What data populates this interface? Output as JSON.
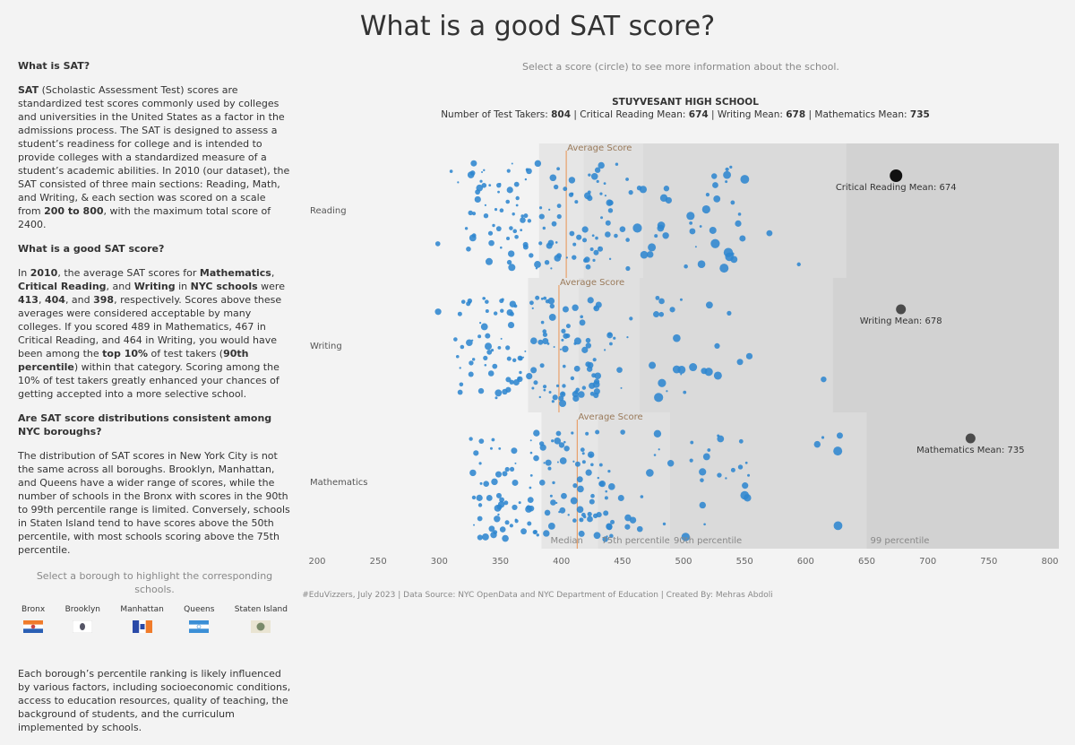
{
  "title": "What is a good SAT score?",
  "sidebar": {
    "h1": "What is SAT?",
    "p1_bold": "SAT",
    "p1_a": " (Scholastic Assessment Test) scores are standardized test scores commonly used by colleges and universities in the United States as a factor in the admissions process. The SAT is designed to assess a student’s readiness for college and is intended to provide colleges with a standardized measure of a student’s academic abilities. In 2010 (our dataset), the SAT consisted of three main sections: Reading, Math, and Writing, & each section was scored on a scale from ",
    "p1_range": "200 to 800",
    "p1_b": ", with the maximum total score of 2400.",
    "h2": "What is a good SAT score?",
    "p2_a": "In ",
    "p2_year": "2010",
    "p2_b": ", the average SAT scores for ",
    "p2_math": "Mathematics",
    "p2_c": ", ",
    "p2_reading": "Critical Reading",
    "p2_d": ", and ",
    "p2_writing": "Writing",
    "p2_e": " in ",
    "p2_nyc": "NYC schools",
    "p2_f": " were ",
    "p2_v1": "413",
    "p2_g": ", ",
    "p2_v2": "404",
    "p2_h": ", and ",
    "p2_v3": "398",
    "p2_i": ", respectively. Scores above these averages were considered acceptable by many colleges. If you scored 489 in Mathematics, 467 in Critical Reading, and 464 in Writing, you would have been among the ",
    "p2_top": "top 10%",
    "p2_j": " of test takers (",
    "p2_pct": "90th percentile",
    "p2_k": ") within that category. Scoring among the 10% of test takers greatly enhanced your chances of getting accepted into a more selective school.",
    "h3": "Are SAT score distributions consistent among NYC boroughs?",
    "p3": "The distribution of SAT scores in New York City is not the same across all boroughs. Brooklyn, Manhattan, and Queens have a wider range of scores, while the number of schools in the Bronx with scores in the 90th to 99th percentile range is limited. Conversely, schools in Staten Island tend to have scores above the 50th percentile, with most schools scoring above the 75th percentile.",
    "borough_hint": "Select a borough to highlight the corresponding schools.",
    "boroughs": [
      "Bronx",
      "Brooklyn",
      "Manhattan",
      "Queens",
      "Staten Island"
    ],
    "p4": "Each borough’s percentile ranking is likely influenced by various factors, including socioeconomic conditions, access to education resources, quality of teaching, the background of students, and the curriculum implemented by schools."
  },
  "header": {
    "hint": "Select a score (circle) to see more information about the school.",
    "school": "STUYVESANT HIGH SCHOOL",
    "takers_label": "Number of Test Takers: ",
    "takers": "804",
    "sep1": " | ",
    "reading_label": "Critical Reading Mean:  ",
    "reading": "674",
    "sep2": " | ",
    "writing_label": "Writing Mean:  ",
    "writing": "678",
    "sep3": "  |  ",
    "math_label": "Mathematics Mean: ",
    "math": "735"
  },
  "footer": "#EduVizzers, July 2023 | Data Source: NYC OpenData and NYC Department of Education | Created By: Mehras Abdoli",
  "chart_data": {
    "type": "scatter",
    "xlim": [
      200,
      800
    ],
    "x_ticks": [
      200,
      250,
      300,
      350,
      400,
      450,
      500,
      550,
      600,
      650,
      700,
      750,
      800
    ],
    "avg_label": "Average Score",
    "rows": [
      {
        "name": "Reading",
        "average": 404,
        "median": 392,
        "p75": 418,
        "p90": 467,
        "p99": 633,
        "selected": 674,
        "selected_label": "Critical Reading Mean: 674",
        "min": 290,
        "max": 640
      },
      {
        "name": "Writing",
        "average": 398,
        "median": 383,
        "p75": 414,
        "p90": 464,
        "p99": 622,
        "selected": 678,
        "selected_label": "Writing Mean: 678",
        "min": 285,
        "max": 650
      },
      {
        "name": "Mathematics",
        "average": 413,
        "median": 394,
        "p75": 430,
        "p90": 489,
        "p99": 650,
        "selected": 735,
        "selected_label": "Mathematics Mean: 735",
        "min": 280,
        "max": 690
      }
    ],
    "percentile_labels": [
      "Median",
      "75th percentile",
      "90th percentile",
      "99 percentile"
    ],
    "dot_color": "#2f86cf",
    "selected_color": "#111111"
  },
  "colors": {
    "accent_line": "#e8a06a",
    "band_median": "#e6e6e6",
    "band_75": "#e0e0e0",
    "band_90": "#dadada",
    "band_99": "#d2d2d2"
  }
}
